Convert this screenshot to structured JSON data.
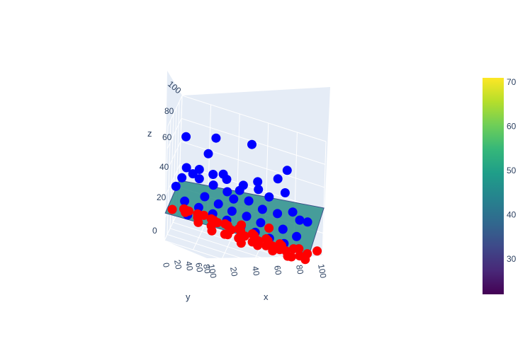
{
  "chart_data": {
    "type": "scatter3d",
    "x_axis": {
      "label": "x",
      "ticks": [
        "0",
        "20",
        "40",
        "60",
        "80",
        "100"
      ],
      "range": [
        0,
        100
      ]
    },
    "y_axis": {
      "label": "y",
      "ticks": [
        "0",
        "20",
        "40",
        "60",
        "80",
        "100"
      ],
      "range": [
        0,
        100
      ]
    },
    "z_axis": {
      "label": "z",
      "ticks": [
        "0",
        "20",
        "40",
        "60",
        "80",
        "100"
      ],
      "range": [
        0,
        100
      ]
    },
    "colorbar": {
      "ticks": [
        "30",
        "40",
        "50",
        "60",
        "70"
      ],
      "range": [
        22,
        71
      ],
      "colorscale": "viridis"
    },
    "surface": {
      "type": "plane",
      "color": "#2a8f8a"
    },
    "series": [
      {
        "color": "#0000ff",
        "points": [
          [
            50,
            90,
            80
          ],
          [
            25,
            92,
            75
          ],
          [
            5,
            85,
            70
          ],
          [
            75,
            88,
            68
          ],
          [
            22,
            70,
            66
          ],
          [
            70,
            75,
            62
          ],
          [
            35,
            45,
            60
          ],
          [
            50,
            35,
            59
          ],
          [
            60,
            40,
            58
          ],
          [
            10,
            40,
            57
          ],
          [
            15,
            35,
            55
          ],
          [
            20,
            30,
            54
          ],
          [
            30,
            28,
            53
          ],
          [
            40,
            25,
            52
          ],
          [
            85,
            30,
            51
          ],
          [
            55,
            25,
            50
          ],
          [
            45,
            20,
            49
          ],
          [
            65,
            20,
            48
          ],
          [
            75,
            25,
            47
          ],
          [
            90,
            30,
            46
          ],
          [
            95,
            35,
            45
          ],
          [
            5,
            20,
            44
          ],
          [
            25,
            20,
            43
          ],
          [
            35,
            15,
            42
          ],
          [
            45,
            10,
            41
          ],
          [
            55,
            12,
            40
          ],
          [
            65,
            10,
            39
          ],
          [
            80,
            15,
            38
          ],
          [
            90,
            10,
            37
          ],
          [
            12,
            12,
            36
          ],
          [
            22,
            10,
            35
          ],
          [
            32,
            8,
            34
          ],
          [
            42,
            6,
            33
          ],
          [
            52,
            5,
            32
          ],
          [
            62,
            4,
            31
          ],
          [
            72,
            3,
            30
          ],
          [
            82,
            5,
            29
          ],
          [
            92,
            6,
            28
          ],
          [
            15,
            5,
            27
          ],
          [
            48,
            30,
            55
          ],
          [
            58,
            55,
            60
          ],
          [
            18,
            50,
            56
          ],
          [
            28,
            45,
            57
          ],
          [
            38,
            40,
            58
          ],
          [
            68,
            35,
            56
          ],
          [
            78,
            45,
            61
          ],
          [
            8,
            30,
            50
          ]
        ]
      },
      {
        "color": "#ff0000",
        "points": [
          [
            80,
            10,
            25
          ],
          [
            70,
            15,
            24
          ],
          [
            60,
            20,
            23
          ],
          [
            50,
            25,
            22
          ],
          [
            90,
            30,
            21
          ],
          [
            40,
            35,
            20
          ],
          [
            30,
            40,
            19
          ],
          [
            20,
            45,
            18
          ],
          [
            10,
            50,
            17
          ],
          [
            95,
            40,
            16
          ],
          [
            85,
            45,
            15
          ],
          [
            75,
            50,
            14
          ],
          [
            65,
            55,
            13
          ],
          [
            55,
            60,
            12
          ],
          [
            45,
            65,
            11
          ],
          [
            35,
            70,
            10
          ],
          [
            25,
            75,
            9
          ],
          [
            15,
            80,
            8
          ],
          [
            5,
            85,
            7
          ],
          [
            88,
            60,
            6
          ],
          [
            78,
            65,
            5
          ],
          [
            68,
            70,
            4
          ],
          [
            58,
            75,
            3
          ],
          [
            48,
            80,
            2
          ],
          [
            38,
            85,
            2
          ],
          [
            28,
            90,
            3
          ],
          [
            18,
            95,
            4
          ],
          [
            8,
            90,
            5
          ],
          [
            92,
            55,
            8
          ],
          [
            82,
            35,
            10
          ],
          [
            72,
            30,
            12
          ],
          [
            62,
            25,
            14
          ],
          [
            52,
            10,
            16
          ],
          [
            42,
            15,
            18
          ],
          [
            32,
            5,
            20
          ],
          [
            22,
            10,
            22
          ],
          [
            12,
            20,
            24
          ],
          [
            2,
            30,
            20
          ],
          [
            96,
            15,
            18
          ],
          [
            86,
            20,
            15
          ],
          [
            76,
            40,
            12
          ],
          [
            66,
            45,
            10
          ],
          [
            56,
            50,
            8
          ],
          [
            46,
            55,
            6
          ],
          [
            36,
            60,
            4
          ],
          [
            26,
            65,
            6
          ],
          [
            16,
            70,
            8
          ],
          [
            6,
            75,
            10
          ],
          [
            99,
            70,
            12
          ],
          [
            64,
            85,
            14
          ],
          [
            44,
            95,
            6
          ]
        ]
      }
    ]
  }
}
